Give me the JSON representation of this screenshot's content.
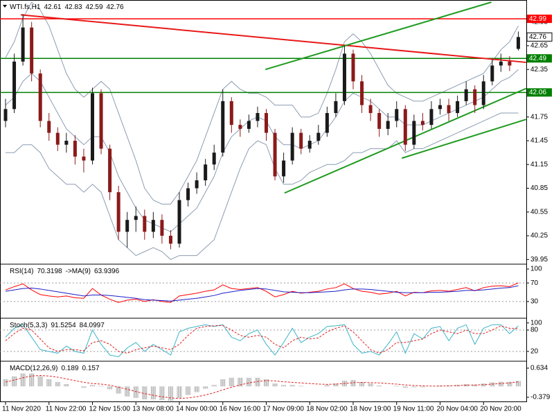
{
  "chart_data": [
    {
      "type": "candlestick",
      "symbol": "WTI.fs,H1",
      "categories": [
        "11 Nov 2020",
        null,
        null,
        null,
        null,
        "11 Nov 22:00",
        null,
        null,
        null,
        null,
        "12 Nov 15:00",
        null,
        null,
        null,
        null,
        "13 Nov 08:00",
        null,
        null,
        null,
        null,
        "14 Nov 00:00",
        null,
        null,
        null,
        null,
        "16 Nov 16:00",
        null,
        null,
        null,
        null,
        "17 Nov 09:00",
        null,
        null,
        null,
        null,
        "18 Nov 02:00",
        null,
        null,
        null,
        null,
        "18 Nov 19:00",
        null,
        null,
        null,
        null,
        "19 Nov 11:00",
        null,
        null,
        null,
        null,
        "20 Nov 04:00",
        null,
        null,
        null,
        null,
        "20 Nov 20:00",
        null,
        null,
        null,
        null
      ],
      "open": [
        41.7,
        41.85,
        42.45,
        42.88,
        42.3,
        41.7,
        41.55,
        41.4,
        41.45,
        41.25,
        41.2,
        42.05,
        41.35,
        40.8,
        40.3,
        40.45,
        40.5,
        40.3,
        40.45,
        40.25,
        40.15,
        40.7,
        40.85,
        40.95,
        41.15,
        41.3,
        41.95,
        41.65,
        41.6,
        41.7,
        41.8,
        41.55,
        41.0,
        41.2,
        41.55,
        41.35,
        41.45,
        41.55,
        41.8,
        41.95,
        42.55,
        42.2,
        41.9,
        41.8,
        41.6,
        41.7,
        41.85,
        41.4,
        41.7,
        41.65,
        41.85,
        41.9,
        41.8,
        41.95,
        42.1,
        41.9,
        42.2,
        42.4,
        42.45,
        42.61
      ],
      "high": [
        41.98,
        42.55,
        43.05,
        42.95,
        42.35,
        41.8,
        41.62,
        41.55,
        41.52,
        41.35,
        42.12,
        42.1,
        41.4,
        40.88,
        40.55,
        40.62,
        40.58,
        40.55,
        40.52,
        40.32,
        40.8,
        40.92,
        41.05,
        41.22,
        41.4,
        42.1,
        42.0,
        41.72,
        41.78,
        41.88,
        41.85,
        41.6,
        41.3,
        41.62,
        41.6,
        41.52,
        41.65,
        41.88,
        42.05,
        42.65,
        42.6,
        42.28,
        41.98,
        41.85,
        41.8,
        41.95,
        41.9,
        41.78,
        41.8,
        41.95,
        41.98,
        41.98,
        42.02,
        42.2,
        42.15,
        42.28,
        42.48,
        42.55,
        42.52,
        42.83
      ],
      "low": [
        41.62,
        41.8,
        42.4,
        42.2,
        41.62,
        41.45,
        41.32,
        41.3,
        41.15,
        41.05,
        41.15,
        41.28,
        40.7,
        40.2,
        40.1,
        40.3,
        40.2,
        40.22,
        40.15,
        40.08,
        40.1,
        40.62,
        40.78,
        40.88,
        41.08,
        41.25,
        41.55,
        41.5,
        41.55,
        41.62,
        41.45,
        40.95,
        40.92,
        41.15,
        41.28,
        41.3,
        41.4,
        41.5,
        41.75,
        41.9,
        42.1,
        41.8,
        41.7,
        41.5,
        41.52,
        41.62,
        41.32,
        41.35,
        41.58,
        41.6,
        41.78,
        41.7,
        41.75,
        41.9,
        41.8,
        41.85,
        42.15,
        42.32,
        42.33,
        42.59
      ],
      "close": [
        41.85,
        42.45,
        42.88,
        42.3,
        41.7,
        41.55,
        41.4,
        41.45,
        41.25,
        41.2,
        42.05,
        41.35,
        40.8,
        40.3,
        40.45,
        40.5,
        40.3,
        40.45,
        40.25,
        40.15,
        40.7,
        40.85,
        40.95,
        41.15,
        41.3,
        41.95,
        41.65,
        41.6,
        41.7,
        41.8,
        41.55,
        41.0,
        41.2,
        41.55,
        41.35,
        41.45,
        41.55,
        41.8,
        41.95,
        42.55,
        42.2,
        41.9,
        41.8,
        41.6,
        41.7,
        41.85,
        41.4,
        41.7,
        41.65,
        41.85,
        41.9,
        41.8,
        41.95,
        42.1,
        41.9,
        42.2,
        42.4,
        42.45,
        42.4,
        42.76
      ],
      "up_color": "#1a1a1a",
      "down_color": "#8b1a1a",
      "bands": {
        "color": "#8c9cb2",
        "upper": [
          42.5,
          42.7,
          43.0,
          43.2,
          43.1,
          42.9,
          42.6,
          42.3,
          42.1,
          42.0,
          42.1,
          42.2,
          42.1,
          41.8,
          41.5,
          41.2,
          40.85,
          40.7,
          40.65,
          40.65,
          40.8,
          41.0,
          41.2,
          41.5,
          41.8,
          42.1,
          42.2,
          42.1,
          42.05,
          42.05,
          42.0,
          41.9,
          41.9,
          41.9,
          41.75,
          41.75,
          41.8,
          42.05,
          42.35,
          42.7,
          42.8,
          42.7,
          42.55,
          42.35,
          42.15,
          42.05,
          42.0,
          41.95,
          41.95,
          42.0,
          42.05,
          42.1,
          42.15,
          42.2,
          42.25,
          42.3,
          42.45,
          42.6,
          42.7,
          42.9
        ],
        "middle": [
          41.9,
          42.0,
          42.2,
          42.3,
          42.2,
          42.0,
          41.8,
          41.6,
          41.5,
          41.4,
          41.5,
          41.5,
          41.3,
          41.0,
          40.8,
          40.6,
          40.45,
          40.4,
          40.35,
          40.3,
          40.4,
          40.5,
          40.6,
          40.8,
          41.0,
          41.3,
          41.5,
          41.6,
          41.7,
          41.75,
          41.7,
          41.5,
          41.4,
          41.4,
          41.35,
          41.4,
          41.45,
          41.6,
          41.75,
          41.95,
          42.05,
          42.0,
          41.95,
          41.85,
          41.75,
          41.75,
          41.65,
          41.65,
          41.65,
          41.7,
          41.75,
          41.8,
          41.85,
          41.9,
          41.95,
          42.0,
          42.1,
          42.2,
          42.25,
          42.35
        ],
        "lower": [
          41.3,
          41.3,
          41.4,
          41.4,
          41.3,
          41.1,
          41.0,
          40.9,
          40.9,
          40.8,
          40.9,
          40.8,
          40.5,
          40.2,
          40.1,
          40.0,
          40.05,
          40.1,
          40.05,
          39.95,
          40.0,
          40.0,
          40.0,
          40.1,
          40.2,
          40.5,
          40.8,
          41.1,
          41.35,
          41.45,
          41.4,
          41.1,
          40.9,
          40.9,
          40.95,
          41.05,
          41.1,
          41.15,
          41.15,
          41.2,
          41.3,
          41.3,
          41.35,
          41.35,
          41.35,
          41.45,
          41.3,
          41.35,
          41.35,
          41.4,
          41.45,
          41.5,
          41.55,
          41.6,
          41.65,
          41.7,
          41.75,
          41.8,
          41.8,
          41.8
        ]
      },
      "price_lines": [
        {
          "value": 42.99,
          "color": "#ff0000"
        },
        {
          "value": 42.49,
          "color": "#008000"
        },
        {
          "value": 42.06,
          "color": "#008000"
        }
      ],
      "trendlines": [
        {
          "color": "#e81818",
          "points": [
            [
              1.75,
              43.04
            ],
            [
              59.9,
              42.44
            ]
          ]
        },
        {
          "color": "#1f9a1f",
          "points": [
            [
              29.9,
              42.35
            ],
            [
              55.9,
              43.2
            ]
          ]
        },
        {
          "color": "#1f9a1f",
          "points": [
            [
              32.1,
              40.79
            ],
            [
              59.9,
              42.11
            ]
          ]
        },
        {
          "color": "#1f9a1f",
          "points": [
            [
              45.6,
              41.23
            ],
            [
              59.9,
              41.72
            ]
          ]
        }
      ],
      "ylim": [
        39.9,
        43.21
      ],
      "yticks": [
        42.95,
        42.65,
        42.35,
        42.05,
        41.75,
        41.45,
        41.15,
        40.85,
        40.55,
        40.25,
        39.95
      ]
    },
    {
      "type": "line",
      "series": [
        {
          "name": "RSI(14)",
          "color": "#ff0000",
          "values": [
            55,
            62,
            68,
            55,
            45,
            42,
            40,
            42,
            38,
            37,
            58,
            44,
            35,
            28,
            33,
            35,
            30,
            34,
            30,
            28,
            42,
            45,
            48,
            52,
            55,
            66,
            58,
            56,
            58,
            60,
            52,
            40,
            45,
            52,
            48,
            50,
            52,
            57,
            60,
            68,
            58,
            52,
            50,
            46,
            48,
            52,
            42,
            50,
            49,
            53,
            54,
            52,
            56,
            60,
            53,
            60,
            63,
            64,
            62,
            70.3198
          ]
        },
        {
          "name": "->MA(9)",
          "color": "#1c1cc8",
          "values": [
            52,
            55,
            58,
            59,
            57,
            54,
            51,
            48,
            45,
            42,
            44,
            44,
            43,
            41,
            39,
            37,
            34,
            33,
            32,
            31,
            33,
            35,
            37,
            40,
            43,
            48,
            51,
            54,
            56,
            58,
            57,
            54,
            51,
            50,
            49,
            49,
            50,
            51,
            52,
            55,
            57,
            57,
            56,
            54,
            52,
            50,
            49,
            49,
            49,
            50,
            50,
            51,
            52,
            54,
            54,
            55,
            57,
            59,
            60,
            63.9396
          ]
        }
      ],
      "levels": [
        70,
        30
      ],
      "ylim": [
        -4.5,
        107.5
      ],
      "yticks": [
        100,
        70,
        30
      ]
    },
    {
      "type": "line",
      "series": [
        {
          "name": "Stoch(5,3,3)",
          "color": "#3cb4c8",
          "values": [
            60,
            85,
            95,
            60,
            25,
            20,
            15,
            35,
            20,
            15,
            80,
            40,
            10,
            5,
            30,
            45,
            20,
            40,
            25,
            10,
            75,
            85,
            90,
            95,
            90,
            95,
            60,
            50,
            70,
            80,
            40,
            10,
            45,
            85,
            45,
            60,
            70,
            90,
            92,
            95,
            40,
            15,
            20,
            10,
            40,
            75,
            15,
            70,
            55,
            85,
            90,
            50,
            85,
            95,
            40,
            85,
            95,
            95,
            70,
            91.5254
          ]
        },
        {
          "color": "#e02020",
          "style": "dashed",
          "values": [
            50,
            70,
            85,
            80,
            55,
            30,
            20,
            25,
            25,
            22,
            45,
            50,
            40,
            20,
            15,
            25,
            30,
            35,
            30,
            25,
            40,
            65,
            85,
            90,
            92,
            93,
            80,
            65,
            60,
            65,
            60,
            40,
            30,
            50,
            60,
            55,
            58,
            75,
            85,
            92,
            75,
            50,
            25,
            15,
            25,
            45,
            45,
            50,
            55,
            70,
            80,
            75,
            70,
            80,
            70,
            70,
            80,
            92,
            85,
            84.0997
          ]
        }
      ],
      "levels": [
        80,
        20
      ],
      "ylim": [
        -5.6,
        109.3
      ],
      "yticks": [
        100,
        80,
        20
      ]
    },
    {
      "type": "line",
      "series": [
        {
          "name": "MACD(12,26,9)",
          "color": "#b4b4b4",
          "style": "histogram",
          "values": [
            0.25,
            0.35,
            0.45,
            0.45,
            0.35,
            0.25,
            0.15,
            0.08,
            0.0,
            -0.05,
            0.05,
            0.02,
            -0.1,
            -0.25,
            -0.35,
            -0.4,
            -0.45,
            -0.45,
            -0.48,
            -0.5,
            -0.4,
            -0.3,
            -0.2,
            -0.08,
            0.05,
            0.25,
            0.3,
            0.3,
            0.3,
            0.3,
            0.25,
            0.1,
            0.05,
            0.05,
            0.02,
            0.0,
            0.0,
            0.05,
            0.1,
            0.2,
            0.22,
            0.15,
            0.1,
            0.03,
            0.0,
            0.02,
            -0.05,
            -0.03,
            -0.03,
            0.0,
            0.03,
            0.03,
            0.05,
            0.08,
            0.06,
            0.1,
            0.14,
            0.16,
            0.16,
            0.189
          ]
        },
        {
          "color": "#e02020",
          "style": "dashed",
          "values": [
            0.15,
            0.22,
            0.3,
            0.36,
            0.38,
            0.36,
            0.32,
            0.26,
            0.2,
            0.14,
            0.1,
            0.08,
            0.04,
            -0.03,
            -0.1,
            -0.18,
            -0.25,
            -0.31,
            -0.36,
            -0.4,
            -0.42,
            -0.4,
            -0.36,
            -0.3,
            -0.22,
            -0.12,
            -0.03,
            0.05,
            0.12,
            0.17,
            0.2,
            0.19,
            0.16,
            0.14,
            0.12,
            0.1,
            0.08,
            0.07,
            0.08,
            0.1,
            0.13,
            0.14,
            0.13,
            0.12,
            0.1,
            0.08,
            0.05,
            0.03,
            0.02,
            0.01,
            0.01,
            0.02,
            0.03,
            0.04,
            0.05,
            0.06,
            0.08,
            0.1,
            0.12,
            0.157
          ]
        }
      ],
      "ylim": [
        -0.547,
        0.826
      ],
      "yticks": [
        0.634,
        -0.379
      ]
    }
  ]
}
